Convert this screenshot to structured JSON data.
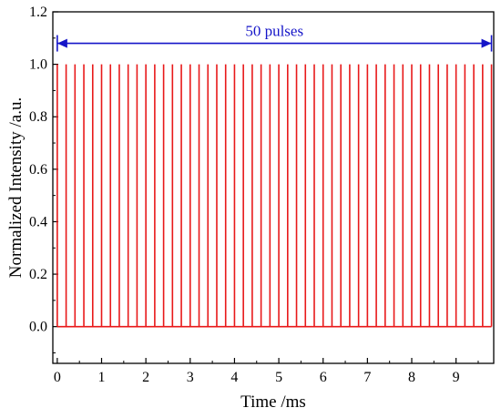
{
  "chart_data": {
    "type": "line",
    "title": "",
    "xlabel": "Time /ms",
    "ylabel": "Normalized Intensity /a.u.",
    "xlim": [
      -0.1,
      9.85
    ],
    "ylim": [
      -0.14,
      1.2
    ],
    "x_ticks": [
      "0",
      "1",
      "2",
      "3",
      "4",
      "5",
      "6",
      "7",
      "8",
      "9"
    ],
    "y_ticks": [
      "0.0",
      "0.2",
      "0.4",
      "0.6",
      "0.8",
      "1.0",
      "1.2"
    ],
    "grid": false,
    "series": [
      {
        "baseline": 0.0,
        "peak": 1.0,
        "pulse_count": 50,
        "first_pulse_ms": 0.0,
        "last_pulse_ms": 9.8,
        "period_ms": 0.2,
        "color": "#e8191a"
      }
    ],
    "annotation": {
      "text": "50 pulses",
      "x_from": 0.0,
      "x_to": 9.8,
      "y": 1.08,
      "color": "#1515c8"
    }
  }
}
